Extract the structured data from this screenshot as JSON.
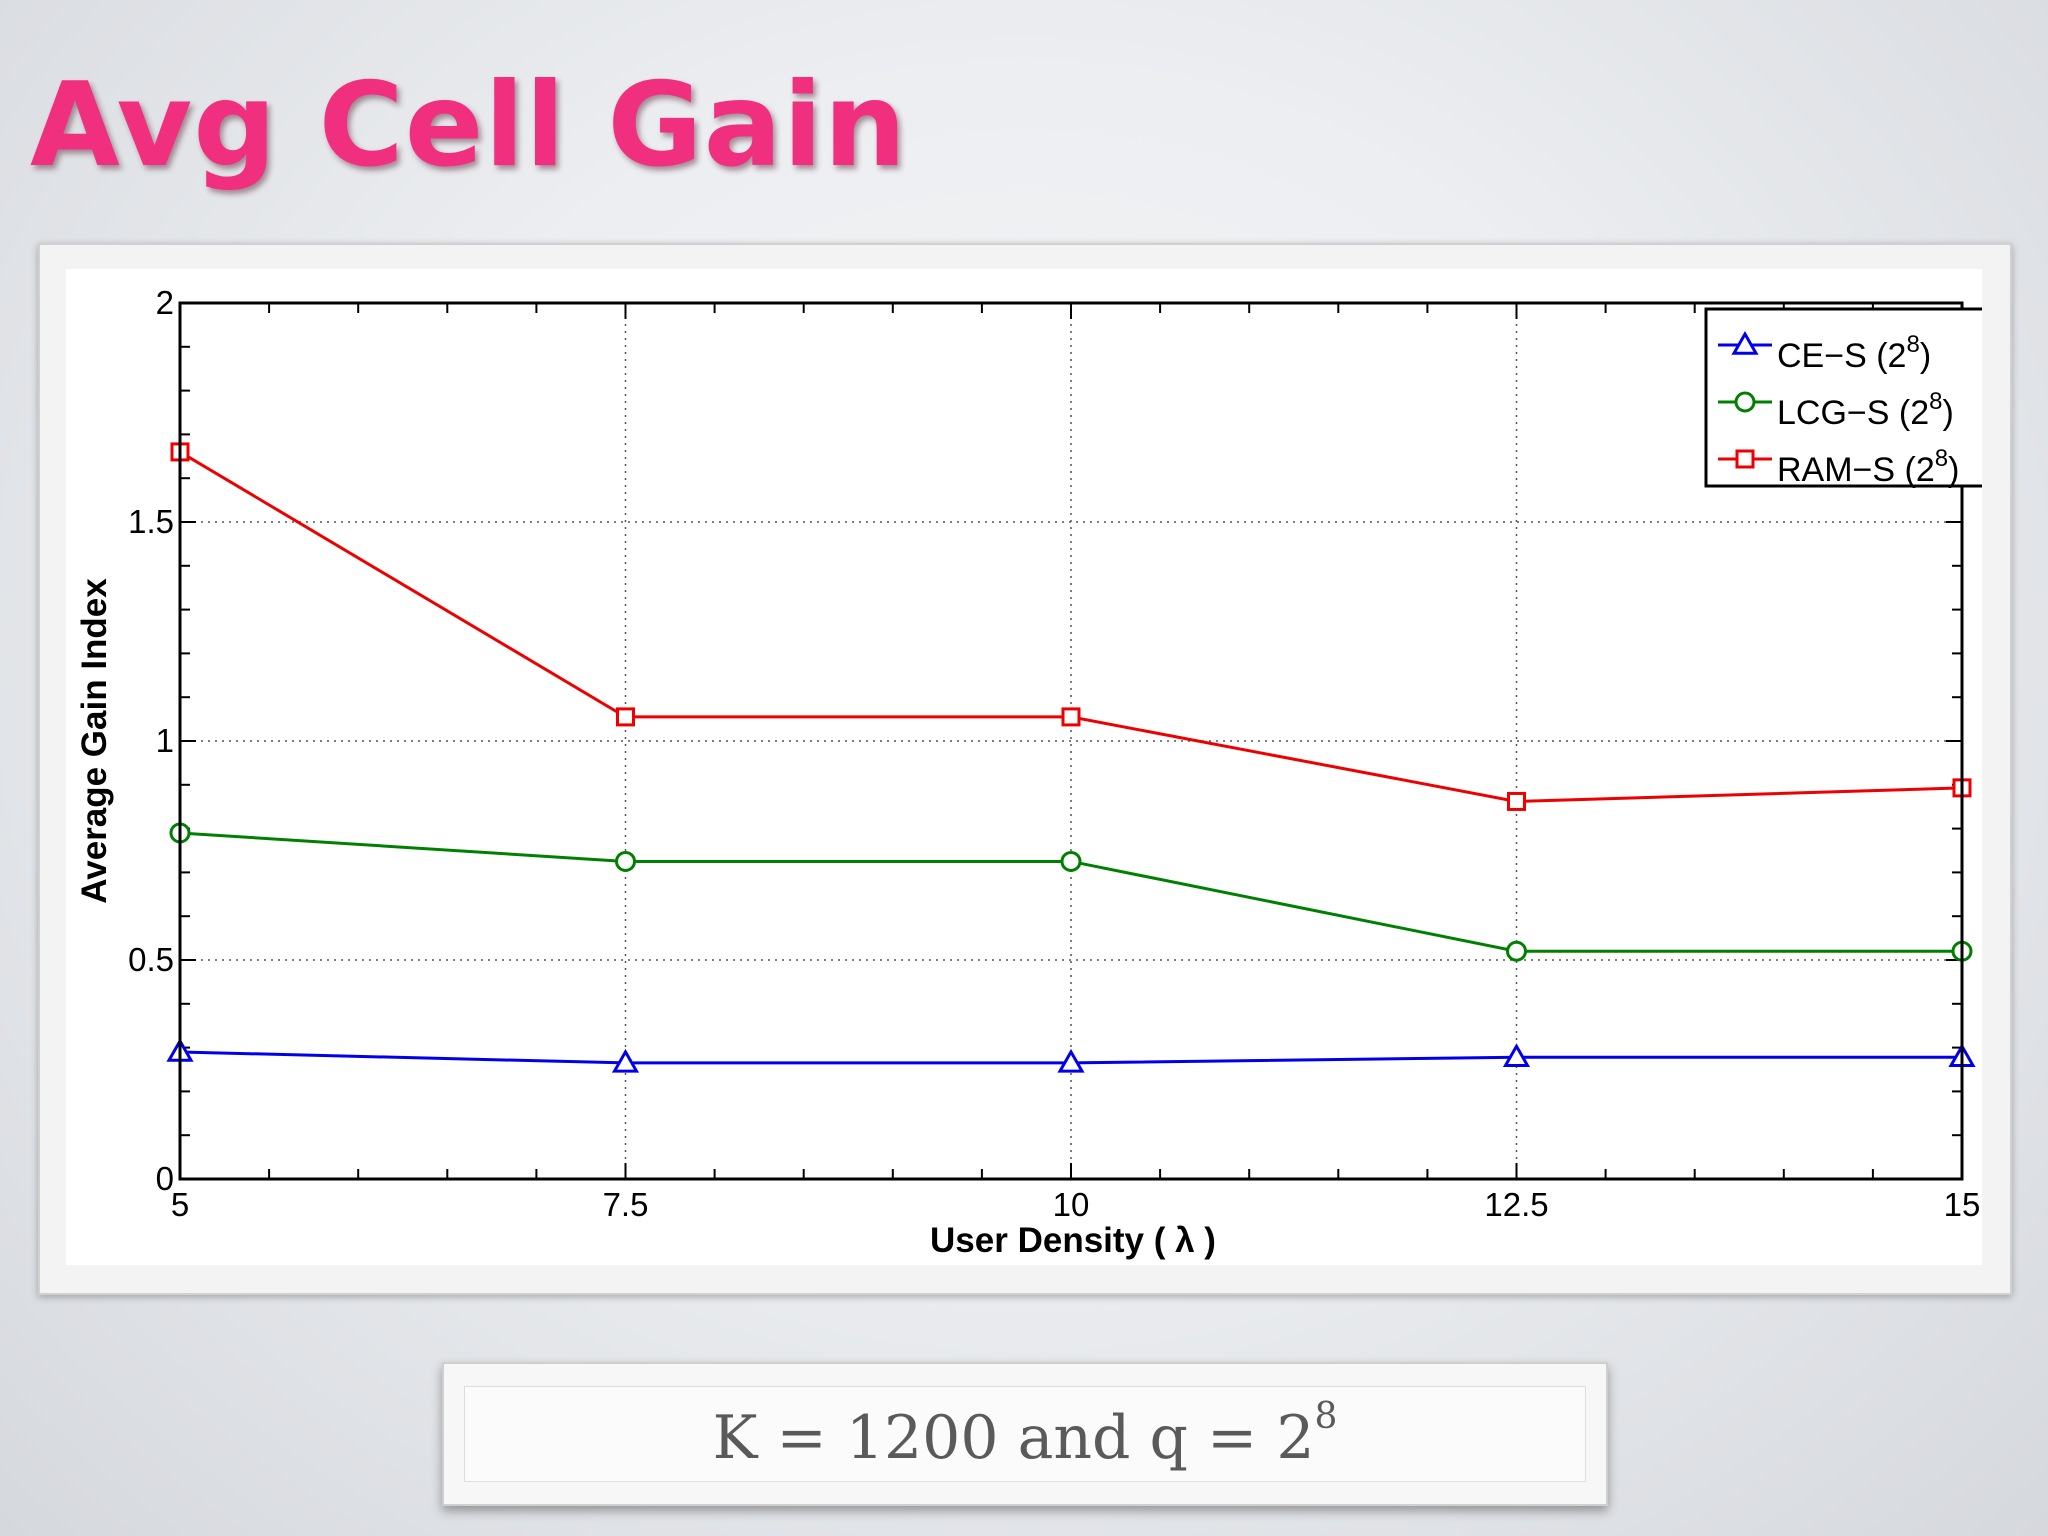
{
  "slide": {
    "title": "Avg Cell Gain",
    "caption": {
      "prefix": "K = 1200 and q = 2",
      "exponent": "8"
    }
  },
  "chart_data": {
    "type": "line",
    "title": "",
    "xlabel": "User Density ( λ )",
    "ylabel": "Average Gain Index",
    "x": [
      5,
      7.5,
      10,
      12.5,
      15
    ],
    "xlim": [
      5,
      15
    ],
    "ylim": [
      0,
      2
    ],
    "xticks": [
      "5",
      "7.5",
      "10",
      "12.5",
      "15"
    ],
    "yticks": [
      "0",
      "0.5",
      "1",
      "1.5",
      "2"
    ],
    "grid": true,
    "legend_position": "top-right",
    "series": [
      {
        "name": "CE−S (2",
        "name_exp": "8",
        "color": "#0000ee",
        "marker": "triangle",
        "values": [
          0.29,
          0.265,
          0.265,
          0.278,
          0.278
        ]
      },
      {
        "name": "LCG−S (2",
        "name_exp": "8",
        "color": "#008000",
        "marker": "circle",
        "values": [
          0.79,
          0.725,
          0.725,
          0.52,
          0.52
        ]
      },
      {
        "name": "RAM−S (2",
        "name_exp": "8",
        "color": "#ee0000",
        "marker": "square",
        "values": [
          1.66,
          1.055,
          1.055,
          0.862,
          0.893
        ]
      }
    ]
  }
}
